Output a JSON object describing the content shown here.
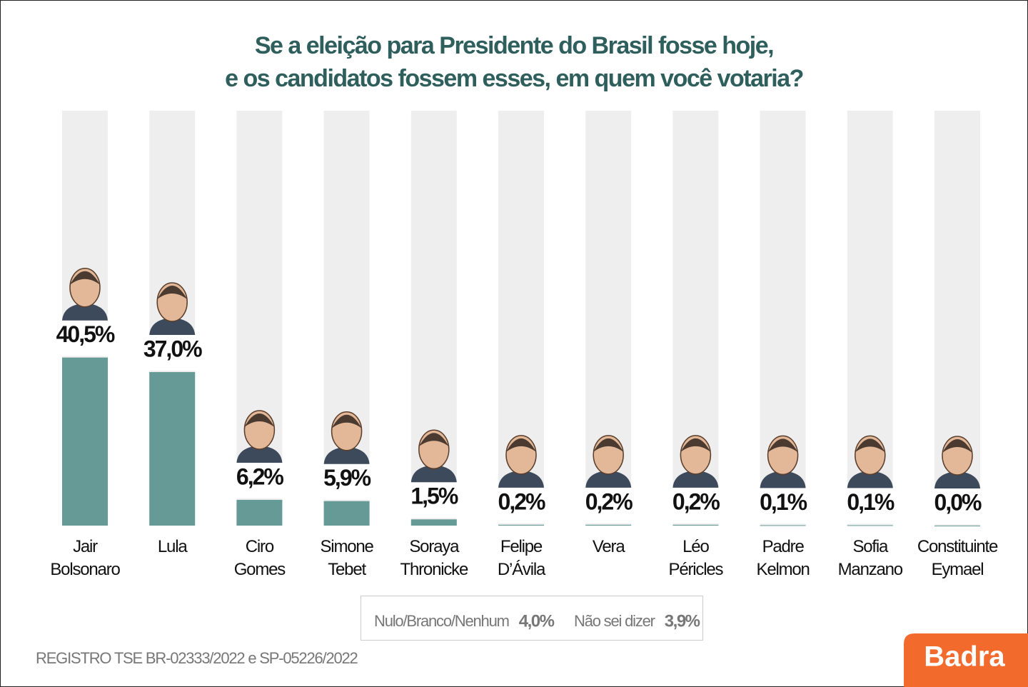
{
  "chart_data": {
    "type": "bar",
    "title": [
      "Se a eleição para Presidente do Brasil fosse hoje,",
      "e os candidatos fossem esses, em quem você votaria?"
    ],
    "categories": [
      "Jair Bolsonaro",
      "Lula",
      "Ciro Gomes",
      "Simone Tebet",
      "Soraya Thronicke",
      "Felipe D’Ávila",
      "Vera",
      "Léo Péricles",
      "Padre Kelmon",
      "Sofia Manzano",
      "Constituinte Eymael"
    ],
    "values": [
      40.5,
      37.0,
      6.2,
      5.9,
      1.5,
      0.2,
      0.2,
      0.2,
      0.1,
      0.1,
      0.0
    ],
    "value_labels": [
      "40,5%",
      "37,0%",
      "6,2%",
      "5,9%",
      "1,5%",
      "0,2%",
      "0,2%",
      "0,2%",
      "0,1%",
      "0,1%",
      "0,0%"
    ],
    "color": "#659a97",
    "track_color": "#eeeeee",
    "ylim": [
      0,
      100
    ],
    "others": [
      {
        "name": "Nulo/Branco/Nenhum",
        "value": 4.0,
        "value_label": "4,0%"
      },
      {
        "name": "Não sei dizer",
        "value": 3.9,
        "value_label": "3,9%"
      }
    ],
    "footnote": "REGISTRO TSE BR-02333/2022 e SP-05226/2022",
    "logo": "Badra"
  }
}
